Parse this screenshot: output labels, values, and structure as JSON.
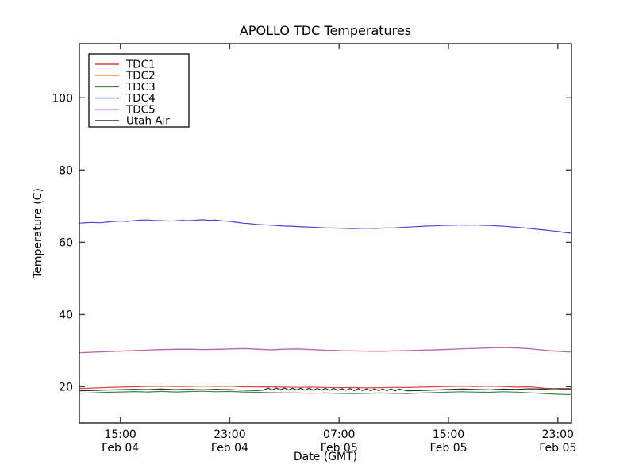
{
  "chart_data": {
    "type": "line",
    "title": "APOLLO TDC Temperatures",
    "xlabel": "Date (GMT)",
    "ylabel": "Temperature (C)",
    "x_unit": "hours from Feb 04 12:00 GMT",
    "xlim": [
      0,
      36
    ],
    "ylim": [
      10,
      115
    ],
    "yticks": [
      20,
      40,
      60,
      80,
      100
    ],
    "xticks": [
      {
        "hour": 3,
        "time": "15:00",
        "date": "Feb 04"
      },
      {
        "hour": 11,
        "time": "23:00",
        "date": "Feb 04"
      },
      {
        "hour": 19,
        "time": "07:00",
        "date": "Feb 05"
      },
      {
        "hour": 27,
        "time": "15:00",
        "date": "Feb 05"
      },
      {
        "hour": 35,
        "time": "23:00",
        "date": "Feb 05"
      }
    ],
    "legend_position": "upper left",
    "frame_color": "#3c3c3c",
    "series": [
      {
        "name": "TDC1",
        "color": "#de453e",
        "points": [
          [
            0,
            19.5
          ],
          [
            1,
            19.65
          ],
          [
            2,
            19.8
          ],
          [
            3,
            19.9
          ],
          [
            4,
            20.0
          ],
          [
            5,
            20.1
          ],
          [
            6,
            20.15
          ],
          [
            7,
            20.05
          ],
          [
            8,
            20.1
          ],
          [
            9,
            20.2
          ],
          [
            10,
            20.1
          ],
          [
            11,
            20.15
          ],
          [
            12,
            20.0
          ],
          [
            13,
            19.95
          ],
          [
            14,
            20.0
          ],
          [
            15,
            19.9
          ],
          [
            16,
            19.85
          ],
          [
            17,
            19.9
          ],
          [
            18,
            19.8
          ],
          [
            19,
            19.75
          ],
          [
            20,
            19.8
          ],
          [
            21,
            19.7
          ],
          [
            22,
            19.75
          ],
          [
            23,
            19.85
          ],
          [
            24,
            19.8
          ],
          [
            25,
            19.9
          ],
          [
            26,
            20.0
          ],
          [
            27,
            20.05
          ],
          [
            28,
            20.15
          ],
          [
            29,
            20.05
          ],
          [
            30,
            20.15
          ],
          [
            31,
            20.05
          ],
          [
            32,
            19.9
          ],
          [
            33,
            20.0
          ],
          [
            34,
            19.6
          ],
          [
            35,
            19.4
          ],
          [
            36,
            19.2
          ]
        ]
      },
      {
        "name": "TDC2",
        "color": "#f2a93b",
        "points": [
          [
            0,
            29.4
          ],
          [
            1,
            29.55
          ],
          [
            2,
            29.7
          ],
          [
            3,
            29.85
          ],
          [
            4,
            30.0
          ],
          [
            5,
            30.15
          ],
          [
            6,
            30.3
          ],
          [
            7,
            30.35
          ],
          [
            8,
            30.4
          ],
          [
            9,
            30.3
          ],
          [
            10,
            30.35
          ],
          [
            11,
            30.45
          ],
          [
            12,
            30.55
          ],
          [
            13,
            30.4
          ],
          [
            14,
            30.2
          ],
          [
            15,
            30.4
          ],
          [
            16,
            30.45
          ],
          [
            17,
            30.3
          ],
          [
            18,
            30.1
          ],
          [
            19,
            30.0
          ],
          [
            20,
            29.9
          ],
          [
            21,
            29.85
          ],
          [
            22,
            29.8
          ],
          [
            23,
            29.9
          ],
          [
            24,
            30.0
          ],
          [
            25,
            30.1
          ],
          [
            26,
            30.2
          ],
          [
            27,
            30.35
          ],
          [
            28,
            30.5
          ],
          [
            29,
            30.6
          ],
          [
            30,
            30.75
          ],
          [
            31,
            30.85
          ],
          [
            32,
            30.75
          ],
          [
            33,
            30.5
          ],
          [
            34,
            30.1
          ],
          [
            35,
            29.8
          ],
          [
            36,
            29.6
          ]
        ]
      },
      {
        "name": "TDC3",
        "color": "#3d8b3d",
        "points": [
          [
            0,
            18.2
          ],
          [
            1,
            18.3
          ],
          [
            2,
            18.45
          ],
          [
            3,
            18.55
          ],
          [
            4,
            18.65
          ],
          [
            5,
            18.55
          ],
          [
            6,
            18.7
          ],
          [
            7,
            18.55
          ],
          [
            8,
            18.65
          ],
          [
            9,
            18.75
          ],
          [
            10,
            18.6
          ],
          [
            11,
            18.7
          ],
          [
            12,
            18.55
          ],
          [
            13,
            18.45
          ],
          [
            14,
            18.35
          ],
          [
            15,
            18.3
          ],
          [
            16,
            18.25
          ],
          [
            17,
            18.2
          ],
          [
            18,
            18.25
          ],
          [
            19,
            18.15
          ],
          [
            20,
            18.1
          ],
          [
            21,
            18.15
          ],
          [
            22,
            18.25
          ],
          [
            23,
            18.15
          ],
          [
            24,
            18.1
          ],
          [
            25,
            18.25
          ],
          [
            26,
            18.4
          ],
          [
            27,
            18.5
          ],
          [
            28,
            18.6
          ],
          [
            29,
            18.5
          ],
          [
            30,
            18.45
          ],
          [
            31,
            18.6
          ],
          [
            32,
            18.5
          ],
          [
            33,
            18.3
          ],
          [
            34,
            18.1
          ],
          [
            35,
            17.9
          ],
          [
            36,
            17.8
          ]
        ]
      },
      {
        "name": "TDC4",
        "color": "#4747dd",
        "points": [
          [
            0,
            65.3
          ],
          [
            0.5,
            65.45
          ],
          [
            1,
            65.5
          ],
          [
            1.5,
            65.4
          ],
          [
            2,
            65.6
          ],
          [
            2.5,
            65.75
          ],
          [
            3,
            65.9
          ],
          [
            3.5,
            65.8
          ],
          [
            4,
            66.0
          ],
          [
            4.5,
            66.15
          ],
          [
            5,
            66.2
          ],
          [
            5.5,
            66.05
          ],
          [
            6,
            66.0
          ],
          [
            6.5,
            65.9
          ],
          [
            7,
            65.95
          ],
          [
            7.5,
            66.1
          ],
          [
            8,
            66.0
          ],
          [
            8.5,
            66.1
          ],
          [
            9,
            66.25
          ],
          [
            9.5,
            66.1
          ],
          [
            10,
            66.15
          ],
          [
            10.5,
            65.95
          ],
          [
            11,
            65.8
          ],
          [
            11.5,
            65.55
          ],
          [
            12,
            65.3
          ],
          [
            12.5,
            65.15
          ],
          [
            13,
            64.95
          ],
          [
            13.5,
            64.85
          ],
          [
            14,
            64.75
          ],
          [
            14.5,
            64.6
          ],
          [
            15,
            64.5
          ],
          [
            15.5,
            64.45
          ],
          [
            16,
            64.35
          ],
          [
            16.5,
            64.25
          ],
          [
            17,
            64.2
          ],
          [
            17.5,
            64.1
          ],
          [
            18,
            64.0
          ],
          [
            18.5,
            63.95
          ],
          [
            19,
            63.9
          ],
          [
            19.5,
            63.85
          ],
          [
            20,
            63.8
          ],
          [
            20.5,
            63.85
          ],
          [
            21,
            63.9
          ],
          [
            21.5,
            63.85
          ],
          [
            22,
            63.9
          ],
          [
            22.5,
            63.95
          ],
          [
            23,
            64.0
          ],
          [
            23.5,
            64.1
          ],
          [
            24,
            64.2
          ],
          [
            24.5,
            64.3
          ],
          [
            25,
            64.4
          ],
          [
            25.5,
            64.5
          ],
          [
            26,
            64.55
          ],
          [
            26.5,
            64.65
          ],
          [
            27,
            64.7
          ],
          [
            27.5,
            64.75
          ],
          [
            28,
            64.8
          ],
          [
            28.5,
            64.75
          ],
          [
            29,
            64.8
          ],
          [
            29.5,
            64.7
          ],
          [
            30,
            64.65
          ],
          [
            30.5,
            64.55
          ],
          [
            31,
            64.45
          ],
          [
            31.5,
            64.3
          ],
          [
            32,
            64.15
          ],
          [
            32.5,
            64.0
          ],
          [
            33,
            63.8
          ],
          [
            33.5,
            63.6
          ],
          [
            34,
            63.4
          ],
          [
            34.5,
            63.2
          ],
          [
            35,
            63.0
          ],
          [
            35.5,
            62.7
          ],
          [
            36,
            62.5
          ]
        ]
      },
      {
        "name": "TDC5",
        "color": "#b564b5",
        "points": [
          [
            0,
            29.4
          ],
          [
            1,
            29.55
          ],
          [
            2,
            29.7
          ],
          [
            3,
            29.85
          ],
          [
            4,
            30.0
          ],
          [
            5,
            30.15
          ],
          [
            6,
            30.3
          ],
          [
            7,
            30.35
          ],
          [
            8,
            30.4
          ],
          [
            9,
            30.3
          ],
          [
            10,
            30.35
          ],
          [
            11,
            30.45
          ],
          [
            12,
            30.55
          ],
          [
            13,
            30.4
          ],
          [
            14,
            30.2
          ],
          [
            15,
            30.4
          ],
          [
            16,
            30.45
          ],
          [
            17,
            30.3
          ],
          [
            18,
            30.1
          ],
          [
            19,
            30.0
          ],
          [
            20,
            29.9
          ],
          [
            21,
            29.85
          ],
          [
            22,
            29.8
          ],
          [
            23,
            29.9
          ],
          [
            24,
            30.0
          ],
          [
            25,
            30.1
          ],
          [
            26,
            30.2
          ],
          [
            27,
            30.35
          ],
          [
            28,
            30.5
          ],
          [
            29,
            30.6
          ],
          [
            30,
            30.75
          ],
          [
            31,
            30.85
          ],
          [
            32,
            30.75
          ],
          [
            33,
            30.5
          ],
          [
            34,
            30.1
          ],
          [
            35,
            29.8
          ],
          [
            36,
            29.6
          ]
        ]
      },
      {
        "name": "Utah Air",
        "color": "#2f2f2f",
        "points": [
          [
            0,
            18.85
          ],
          [
            1,
            18.95
          ],
          [
            2,
            19.1
          ],
          [
            3,
            19.2
          ],
          [
            4,
            19.3
          ],
          [
            5,
            19.2
          ],
          [
            6,
            19.35
          ],
          [
            7,
            19.2
          ],
          [
            8,
            19.3
          ],
          [
            9,
            19.15
          ],
          [
            10,
            19.3
          ],
          [
            11,
            19.2
          ],
          [
            12,
            19.05
          ],
          [
            13,
            18.95
          ],
          [
            13.5,
            19.1
          ],
          [
            13.8,
            19.65
          ],
          [
            14.1,
            19.1
          ],
          [
            14.4,
            19.65
          ],
          [
            14.7,
            19.15
          ],
          [
            15.0,
            19.65
          ],
          [
            15.3,
            19.1
          ],
          [
            15.6,
            19.6
          ],
          [
            15.9,
            19.1
          ],
          [
            16.2,
            19.6
          ],
          [
            16.5,
            19.05
          ],
          [
            16.8,
            19.6
          ],
          [
            17.1,
            19.05
          ],
          [
            17.4,
            19.55
          ],
          [
            17.7,
            19.05
          ],
          [
            18.0,
            19.55
          ],
          [
            18.3,
            19.0
          ],
          [
            18.6,
            19.55
          ],
          [
            18.9,
            19.0
          ],
          [
            19.2,
            19.5
          ],
          [
            19.5,
            19.0
          ],
          [
            19.8,
            19.5
          ],
          [
            20.1,
            18.95
          ],
          [
            20.4,
            19.5
          ],
          [
            20.7,
            18.95
          ],
          [
            21.0,
            19.45
          ],
          [
            21.3,
            18.9
          ],
          [
            21.6,
            19.45
          ],
          [
            21.9,
            18.9
          ],
          [
            22.2,
            19.4
          ],
          [
            22.5,
            18.9
          ],
          [
            22.8,
            19.4
          ],
          [
            23.1,
            18.85
          ],
          [
            23.4,
            19.35
          ],
          [
            24,
            18.85
          ],
          [
            25,
            18.95
          ],
          [
            26,
            19.1
          ],
          [
            27,
            19.25
          ],
          [
            28,
            19.35
          ],
          [
            29,
            19.25
          ],
          [
            30,
            19.15
          ],
          [
            31,
            19.35
          ],
          [
            32,
            19.3
          ],
          [
            33,
            19.45
          ],
          [
            34,
            19.35
          ],
          [
            35,
            19.5
          ],
          [
            36,
            19.45
          ]
        ]
      }
    ]
  }
}
